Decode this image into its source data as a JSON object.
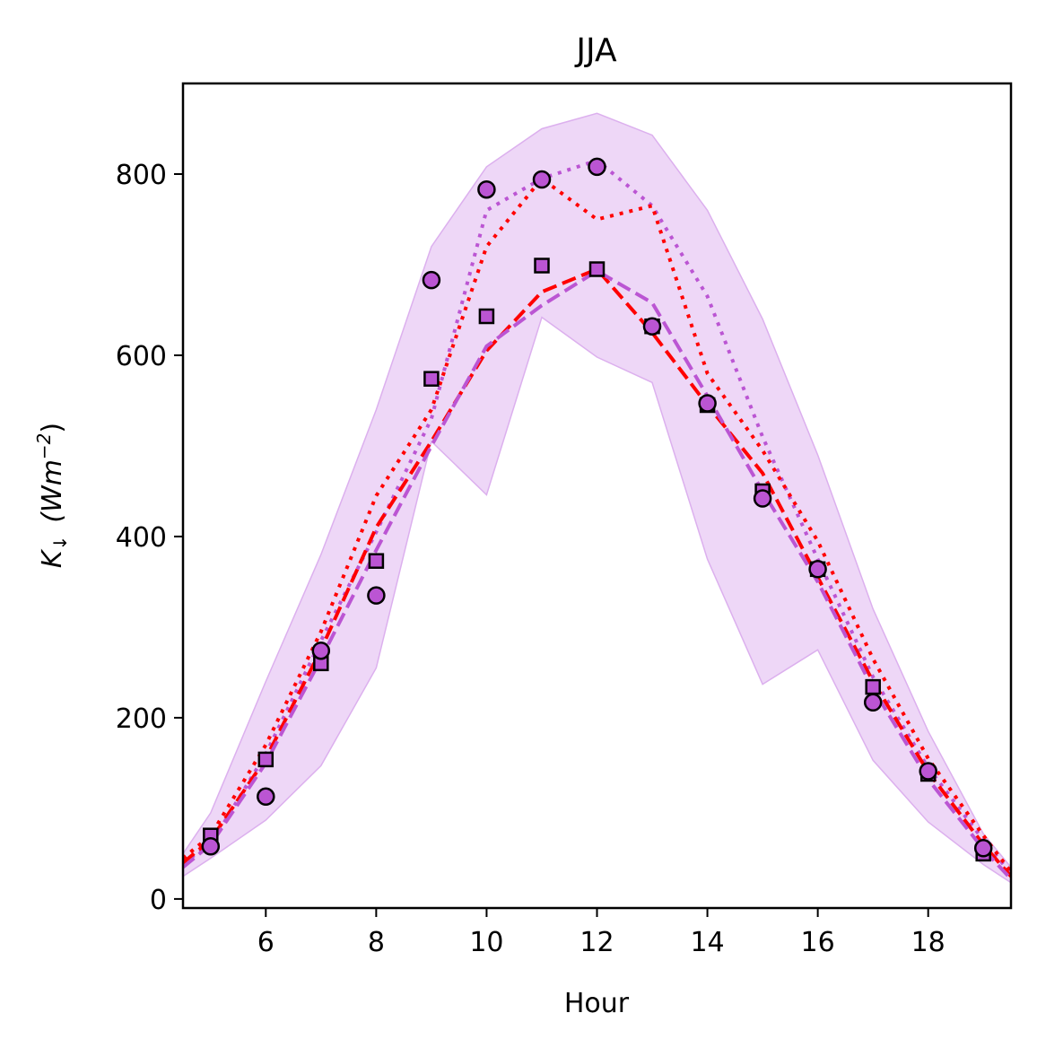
{
  "chart_data": {
    "type": "line",
    "title": "JJA",
    "xlabel": "Hour",
    "ylabel_main": "K",
    "ylabel_sub": "↓",
    "ylabel_unit": "(Wm",
    "ylabel_exp": "−2",
    "ylabel_close": ")",
    "xlim": [
      4.5,
      19.5
    ],
    "ylim": [
      -10,
      900
    ],
    "xticks": [
      6,
      8,
      10,
      12,
      14,
      16,
      18
    ],
    "yticks": [
      0,
      200,
      400,
      600,
      800
    ],
    "grid": false,
    "colors": {
      "purple": "#bb55d3",
      "red": "#ff0000",
      "band": "#e7c6f3",
      "band_edge": "#dcb0ee",
      "marker_edge": "#000000"
    },
    "band": {
      "x": [
        4.5,
        5,
        6,
        7,
        8,
        9,
        10,
        11,
        12,
        13,
        14,
        15,
        16,
        17,
        18,
        19,
        19.5
      ],
      "upper": [
        50,
        95,
        240,
        380,
        540,
        720,
        808,
        850,
        867,
        843,
        760,
        640,
        490,
        320,
        185,
        72,
        35
      ],
      "lower": [
        25,
        45,
        87,
        147,
        255,
        505,
        446,
        642,
        598,
        570,
        375,
        237,
        275,
        153,
        85,
        38,
        18
      ]
    },
    "series": [
      {
        "style": "dotted",
        "color": "#bb55d3",
        "x": [
          4.5,
          5,
          6,
          7,
          8,
          9,
          10,
          11,
          12,
          13,
          14,
          15,
          16,
          17,
          18,
          19,
          19.5
        ],
        "values": [
          40,
          60,
          160,
          285,
          405,
          530,
          760,
          795,
          815,
          765,
          665,
          510,
          375,
          245,
          145,
          65,
          28
        ]
      },
      {
        "style": "dotted",
        "color": "#ff0000",
        "x": [
          4.5,
          5,
          6,
          7,
          8,
          9,
          10,
          11,
          12,
          13,
          14,
          15,
          16,
          17,
          18,
          19,
          19.5
        ],
        "values": [
          45,
          70,
          170,
          295,
          445,
          540,
          720,
          795,
          750,
          765,
          580,
          495,
          395,
          265,
          155,
          70,
          30
        ]
      },
      {
        "style": "dashed",
        "color": "#ff0000",
        "x": [
          4.5,
          5,
          6,
          7,
          8,
          9,
          10,
          11,
          12,
          13,
          14,
          15,
          16,
          17,
          18,
          19,
          19.5
        ],
        "values": [
          40,
          65,
          155,
          275,
          410,
          505,
          605,
          670,
          695,
          625,
          545,
          470,
          355,
          240,
          140,
          60,
          25
        ]
      },
      {
        "style": "dashed",
        "color": "#bb55d3",
        "x": [
          4.5,
          5,
          6,
          7,
          8,
          9,
          10,
          11,
          12,
          13,
          14,
          15,
          16,
          17,
          18,
          19,
          19.5
        ],
        "values": [
          35,
          60,
          150,
          265,
          385,
          500,
          610,
          655,
          693,
          658,
          555,
          450,
          350,
          232,
          132,
          55,
          22
        ]
      }
    ],
    "markers": {
      "circles": {
        "x": [
          5,
          6,
          7,
          8,
          9,
          10,
          11,
          12,
          13,
          14,
          15,
          16,
          17,
          18,
          19
        ],
        "values": [
          58,
          113,
          274,
          335,
          683,
          783,
          794,
          808,
          632,
          547,
          442,
          364,
          217,
          141,
          56
        ]
      },
      "squares": {
        "x": [
          5,
          6,
          7,
          8,
          9,
          10,
          11,
          12,
          13,
          14,
          15,
          16,
          17,
          18,
          19
        ],
        "values": [
          70,
          154,
          260,
          373,
          574,
          643,
          699,
          695,
          632,
          545,
          450,
          364,
          234,
          138,
          50
        ]
      }
    }
  }
}
